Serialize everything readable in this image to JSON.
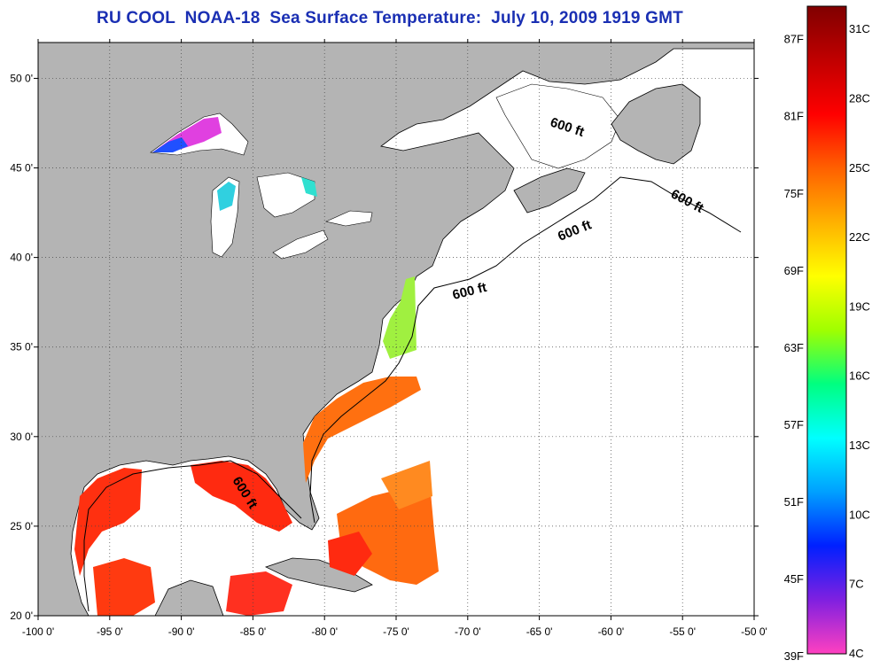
{
  "title": "RU COOL  NOAA-18  Sea Surface Temperature:  July 10, 2009 1919 GMT",
  "axes": {
    "longitude_ticks": [
      "-100 0'",
      "-95 0'",
      "-90 0'",
      "-85 0'",
      "-80 0'",
      "-75 0'",
      "-70 0'",
      "-65 0'",
      "-60 0'",
      "-55 0'",
      "-50 0'"
    ],
    "latitude_ticks": [
      "20 0'",
      "25 0'",
      "30 0'",
      "35 0'",
      "40 0'",
      "45 0'",
      "50 0'"
    ],
    "lon_range": [
      -100,
      -50
    ],
    "lat_range": [
      20,
      52
    ],
    "grid": true
  },
  "isobath_labels": [
    "600 ft",
    "600 ft",
    "600 ft",
    "600 ft",
    "600 ft"
  ],
  "colorbar": {
    "fahrenheit_labels": [
      "87F",
      "81F",
      "75F",
      "69F",
      "63F",
      "57F",
      "51F",
      "45F",
      "39F"
    ],
    "celsius_labels": [
      "31C",
      "28C",
      "25C",
      "22C",
      "19C",
      "16C",
      "13C",
      "10C",
      "7C",
      "4C"
    ],
    "range_c": [
      4,
      32
    ],
    "colors": [
      "#ff40c0",
      "#8020e0",
      "#0020ff",
      "#00a0ff",
      "#00ffff",
      "#00ff80",
      "#a0ff00",
      "#ffff00",
      "#ffb000",
      "#ff6000",
      "#ff0000",
      "#c00000",
      "#800000"
    ]
  },
  "colors": {
    "land": "#b4b4b4",
    "ocean_no_data": "#ffffff",
    "title": "#1a2fb3"
  }
}
